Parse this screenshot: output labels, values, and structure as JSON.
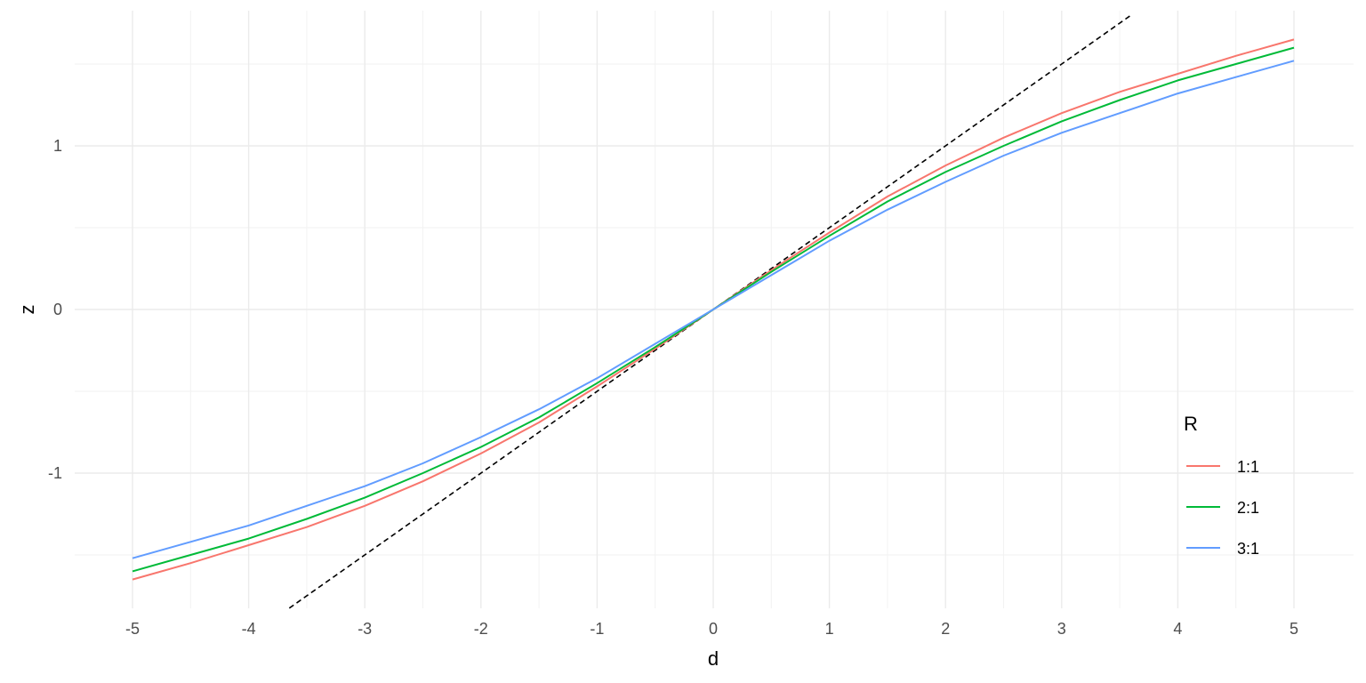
{
  "chart_data": {
    "type": "line",
    "xlabel": "d",
    "ylabel": "z",
    "xlim": [
      -5.3,
      5.5
    ],
    "ylim": [
      -1.82,
      1.82
    ],
    "x_ticks": [
      -5,
      -4,
      -3,
      -2,
      -1,
      0,
      1,
      2,
      3,
      4,
      5
    ],
    "x_tick_labels": [
      "-5",
      "-4",
      "-3",
      "-2",
      "-1",
      "0",
      "1",
      "2",
      "3",
      "4",
      "5"
    ],
    "y_ticks": [
      -1,
      0,
      1
    ],
    "y_tick_labels": [
      "-1",
      "0",
      "1"
    ],
    "y_minor_ticks": [
      -1.5,
      -0.5,
      0.5,
      1.5
    ],
    "grid": true,
    "legend": {
      "title": "R",
      "position": "right",
      "entries": [
        "1:1",
        "2:1",
        "3:1"
      ]
    },
    "reference_line": {
      "style": "dashed",
      "color": "#000000",
      "slope": 0.5,
      "intercept": 0,
      "x_range": [
        -3.65,
        3.6
      ]
    },
    "series": [
      {
        "name": "1:1",
        "color": "#F8766D",
        "x": [
          -5,
          -4.5,
          -4,
          -3.5,
          -3,
          -2.5,
          -2,
          -1.5,
          -1,
          -0.5,
          0,
          0.5,
          1,
          1.5,
          2,
          2.5,
          3,
          3.5,
          4,
          4.5,
          5
        ],
        "y": [
          -1.65,
          -1.55,
          -1.44,
          -1.33,
          -1.2,
          -1.05,
          -0.88,
          -0.69,
          -0.47,
          -0.24,
          0,
          0.24,
          0.47,
          0.69,
          0.88,
          1.05,
          1.2,
          1.33,
          1.44,
          1.55,
          1.65
        ]
      },
      {
        "name": "2:1",
        "color": "#00BA38",
        "x": [
          -5,
          -4.5,
          -4,
          -3.5,
          -3,
          -2.5,
          -2,
          -1.5,
          -1,
          -0.5,
          0,
          0.5,
          1,
          1.5,
          2,
          2.5,
          3,
          3.5,
          4,
          4.5,
          5
        ],
        "y": [
          -1.6,
          -1.5,
          -1.4,
          -1.28,
          -1.15,
          -1.0,
          -0.84,
          -0.66,
          -0.45,
          -0.23,
          0,
          0.23,
          0.45,
          0.66,
          0.84,
          1.0,
          1.15,
          1.28,
          1.4,
          1.5,
          1.6
        ]
      },
      {
        "name": "3:1",
        "color": "#619CFF",
        "x": [
          -5,
          -4.5,
          -4,
          -3.5,
          -3,
          -2.5,
          -2,
          -1.5,
          -1,
          -0.5,
          0,
          0.5,
          1,
          1.5,
          2,
          2.5,
          3,
          3.5,
          4,
          4.5,
          5
        ],
        "y": [
          -1.52,
          -1.42,
          -1.32,
          -1.2,
          -1.08,
          -0.94,
          -0.78,
          -0.61,
          -0.42,
          -0.21,
          0,
          0.21,
          0.42,
          0.61,
          0.78,
          0.94,
          1.08,
          1.2,
          1.32,
          1.42,
          1.52
        ]
      }
    ]
  }
}
